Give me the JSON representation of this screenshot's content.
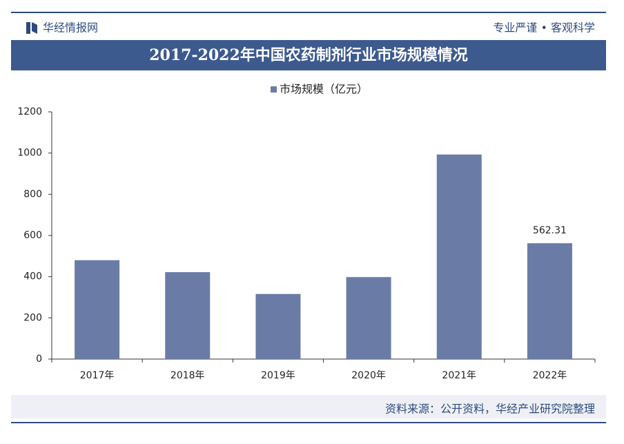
{
  "brand": "华经情报网",
  "slogan": "专业严谨 • 客观科学",
  "source": "资料来源：公开资料，华经产业研究院整理",
  "chart_data": {
    "type": "bar",
    "title": "2017-2022年中国农药制剂行业市场规模情况",
    "categories": [
      "2017年",
      "2018年",
      "2019年",
      "2020年",
      "2021年",
      "2022年"
    ],
    "series": [
      {
        "name": "市场规模（亿元）",
        "color": "#6a7ca6",
        "values": [
          480,
          422,
          316,
          398,
          993,
          562.31
        ],
        "value_labels": [
          null,
          null,
          null,
          null,
          null,
          "562.31"
        ]
      }
    ],
    "ylim": [
      0,
      1200
    ],
    "yticks": [
      0,
      200,
      400,
      600,
      800,
      1000,
      1200
    ],
    "grid": false,
    "legend": "top"
  }
}
